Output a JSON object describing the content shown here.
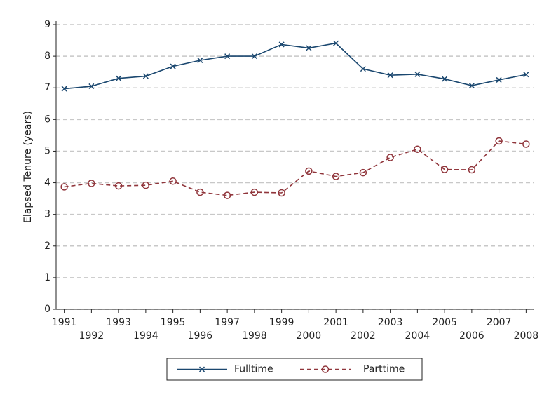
{
  "chart_data": {
    "type": "line",
    "y_label": "Elapsed Tenure (years)",
    "x": [
      1991,
      1992,
      1993,
      1994,
      1995,
      1996,
      1997,
      1998,
      1999,
      2000,
      2001,
      2002,
      2003,
      2004,
      2005,
      2006,
      2007,
      2008
    ],
    "series": [
      {
        "name": "Fulltime",
        "color": "#1a476f",
        "marker": "x",
        "line_style": "solid",
        "values": [
          6.97,
          7.05,
          7.3,
          7.37,
          7.68,
          7.87,
          8.0,
          8.0,
          8.37,
          8.26,
          8.41,
          7.6,
          7.4,
          7.43,
          7.28,
          7.07,
          7.25,
          7.42
        ]
      },
      {
        "name": "Parttime",
        "color": "#90353b",
        "marker": "circle",
        "line_style": "dashed",
        "values": [
          3.87,
          3.98,
          3.9,
          3.92,
          4.05,
          3.7,
          3.6,
          3.7,
          3.68,
          4.37,
          4.2,
          4.32,
          4.8,
          5.06,
          4.42,
          4.41,
          5.32,
          5.22
        ]
      }
    ],
    "xlim": [
      1990.7,
      2008.3
    ],
    "xticks": [
      1991,
      1992,
      1993,
      1994,
      1995,
      1996,
      1997,
      1998,
      1999,
      2000,
      2001,
      2002,
      2003,
      2004,
      2005,
      2006,
      2007,
      2008
    ],
    "ylim": [
      0,
      9
    ],
    "yticks": [
      0,
      1,
      2,
      3,
      4,
      5,
      6,
      7,
      8,
      9
    ],
    "grid": true,
    "legend": "bottom"
  }
}
